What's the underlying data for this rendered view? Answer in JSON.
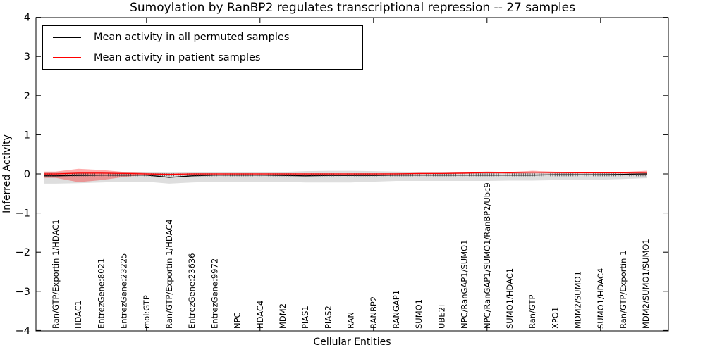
{
  "chart_data": {
    "type": "line",
    "title": "Sumoylation by RanBP2 regulates transcriptional repression -- 27 samples",
    "xlabel": "Cellular Entities",
    "ylabel": "Inferred Activity",
    "ylim": [
      -4,
      4
    ],
    "yticks": [
      4,
      3,
      2,
      1,
      0,
      -1,
      -2,
      -3,
      -4
    ],
    "xtick_major_category_indices": [
      4,
      9,
      14,
      19,
      24
    ],
    "grid": "off",
    "legend_position": "upper-left",
    "categories": [
      "Ran/GTP/Exportin 1/HDAC1",
      "HDAC1",
      "EntrezGene:8021",
      "EntrezGene:23225",
      "mol:GTP",
      "Ran/GTP/Exportin 1/HDAC4",
      "EntrezGene:23636",
      "EntrezGene:9972",
      "NPC",
      "HDAC4",
      "MDM2",
      "PIAS1",
      "PIAS2",
      "RAN",
      "RANBP2",
      "RANGAP1",
      "SUMO1",
      "UBE2I",
      "NPC/RanGAP1/SUMO1",
      "NPC/RanGAP1/SUMO1/RanBP2/Ubc9",
      "SUMO1/HDAC1",
      "Ran/GTP",
      "XPO1",
      "MDM2/SUMO1",
      "SUMO1/HDAC4",
      "Ran/GTP/Exportin 1",
      "MDM2/SUMO1/SUMO1"
    ],
    "series": [
      {
        "name": "Mean activity in all permuted samples",
        "color": "#000000",
        "band_color": "rgba(0,0,0,0.13)",
        "values": [
          -0.05,
          -0.04,
          -0.03,
          -0.03,
          -0.03,
          -0.09,
          -0.05,
          -0.03,
          -0.03,
          -0.03,
          -0.04,
          -0.05,
          -0.04,
          -0.04,
          -0.04,
          -0.03,
          -0.03,
          -0.03,
          -0.03,
          -0.03,
          -0.03,
          -0.03,
          -0.02,
          -0.02,
          -0.02,
          -0.01,
          0.0
        ],
        "band_upper": [
          0.05,
          0.05,
          0.05,
          0.04,
          0.04,
          0.03,
          0.04,
          0.05,
          0.05,
          0.05,
          0.05,
          0.07,
          0.08,
          0.08,
          0.07,
          0.06,
          0.05,
          0.05,
          0.05,
          0.06,
          0.05,
          0.05,
          0.05,
          0.05,
          0.05,
          0.04,
          0.03
        ],
        "band_lower": [
          -0.25,
          -0.24,
          -0.22,
          -0.2,
          -0.2,
          -0.25,
          -0.22,
          -0.2,
          -0.2,
          -0.2,
          -0.2,
          -0.22,
          -0.22,
          -0.22,
          -0.2,
          -0.18,
          -0.18,
          -0.18,
          -0.18,
          -0.18,
          -0.17,
          -0.17,
          -0.16,
          -0.16,
          -0.15,
          -0.13,
          -0.11
        ]
      },
      {
        "name": "Mean activity in patient samples",
        "color": "#ff0000",
        "band_color": "rgba(255,0,0,0.33)",
        "values": [
          0.0,
          0.02,
          0.02,
          0.01,
          0.0,
          -0.01,
          0.0,
          0.0,
          0.0,
          0.0,
          0.0,
          0.0,
          0.0,
          0.0,
          0.0,
          0.0,
          0.01,
          0.01,
          0.02,
          0.035,
          0.03,
          0.045,
          0.035,
          0.03,
          0.03,
          0.03,
          0.04
        ],
        "band_upper": [
          0.06,
          0.13,
          0.1,
          0.05,
          0.02,
          0.01,
          0.015,
          0.015,
          0.015,
          0.015,
          0.015,
          0.015,
          0.015,
          0.015,
          0.015,
          0.02,
          0.02,
          0.025,
          0.04,
          0.06,
          0.05,
          0.08,
          0.055,
          0.05,
          0.045,
          0.05,
          0.08
        ],
        "band_lower": [
          -0.1,
          -0.21,
          -0.16,
          -0.08,
          -0.02,
          -0.03,
          -0.015,
          -0.015,
          -0.015,
          -0.015,
          -0.015,
          -0.015,
          -0.015,
          -0.015,
          -0.015,
          -0.01,
          -0.01,
          -0.005,
          0.0,
          0.01,
          0.005,
          0.01,
          0.01,
          0.01,
          0.01,
          0.01,
          -0.02
        ]
      }
    ]
  }
}
